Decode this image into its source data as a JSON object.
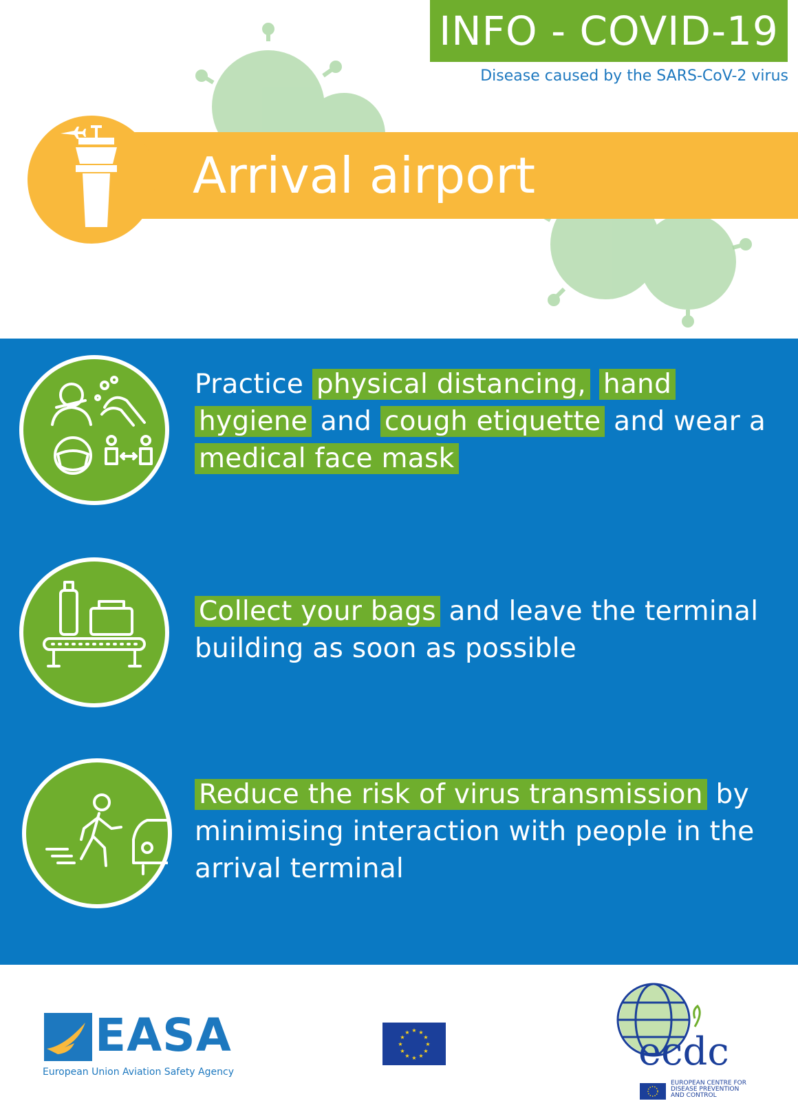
{
  "header": {
    "title": "INFO - COVID-19",
    "subtitle": "Disease caused by the SARS-CoV-2 virus"
  },
  "banner": {
    "title": "Arrival airport",
    "icon": "control-tower-icon"
  },
  "steps": [
    {
      "icon": "hygiene-distancing-icon",
      "parts": [
        {
          "text": "Practice ",
          "highlight": false
        },
        {
          "text": "physical distancing,",
          "highlight": true
        },
        {
          "text": " ",
          "highlight": false
        },
        {
          "text": "hand hygiene",
          "highlight": true
        },
        {
          "text": " and ",
          "highlight": false
        },
        {
          "text": "cough etiquette",
          "highlight": true
        },
        {
          "text": " and wear a ",
          "highlight": false
        },
        {
          "text": "medical face mask",
          "highlight": true
        }
      ]
    },
    {
      "icon": "baggage-carousel-icon",
      "parts": [
        {
          "text": "Collect your bags",
          "highlight": true
        },
        {
          "text": " and leave the terminal building as soon as possible",
          "highlight": false
        }
      ]
    },
    {
      "icon": "walking-to-car-icon",
      "parts": [
        {
          "text": "Reduce the risk of virus transmission",
          "highlight": true
        },
        {
          "text": " by minimising interaction with people in the arrival terminal",
          "highlight": false
        }
      ]
    }
  ],
  "footer": {
    "easa_name": "EASA",
    "easa_caption": "European Union Aviation Safety Agency",
    "ecdc_name": "ecdc",
    "ecdc_caption": "EUROPEAN CENTRE FOR DISEASE PREVENTION AND CONTROL"
  },
  "colors": {
    "green": "#6fae2d",
    "blue": "#0a79c3",
    "yellow": "#f9b93c",
    "navy": "#1b3f9a"
  }
}
